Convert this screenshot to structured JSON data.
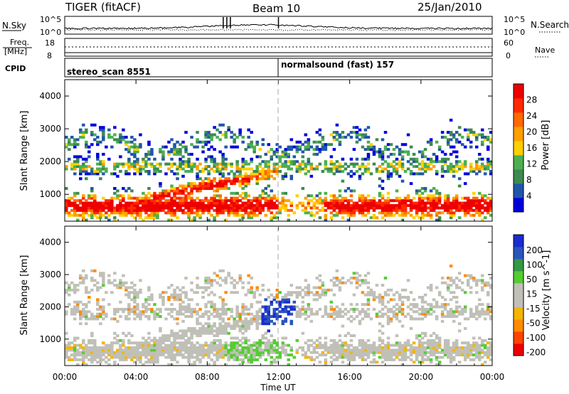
{
  "header": {
    "title": "TIGER (fitACF)",
    "beam": "Beam 10",
    "date": "25/Jan/2010"
  },
  "summary_panel": {
    "nsky_label": "N.Sky",
    "nsearch_label": "N.Search",
    "nsky_ticks": [
      "10^5",
      "10^0"
    ],
    "nsearch_ticks": [
      "10^5",
      "10^0"
    ],
    "freq_label_line1": "Freq.",
    "freq_label_line2": "[MHz]",
    "freq_ticks": [
      "18",
      "8"
    ],
    "nave_label": "Nave",
    "nave_ticks": [
      "60",
      "0"
    ],
    "cpid_label": "CPID",
    "cpid_segments": [
      {
        "label": "stereo_scan 8551",
        "start_hour": 0,
        "end_hour": 12
      },
      {
        "label": "normalsound (fast) 157",
        "start_hour": 12,
        "end_hour": 24
      }
    ]
  },
  "colors": {
    "power_scale": [
      "#0000dd",
      "#2255aa",
      "#3d8a50",
      "#4caf50",
      "#ffd000",
      "#ffa000",
      "#ff6a00",
      "#ff2a00",
      "#ee0000"
    ],
    "velocity_scale": [
      "#ee0000",
      "#ff4400",
      "#ff8c00",
      "#f5b400",
      "#c0c0b8",
      "#c0c0b8",
      "#55cc33",
      "#339944",
      "#2a55bb",
      "#1b2bd0"
    ]
  },
  "chart_data": [
    {
      "type": "heatmap",
      "name": "power",
      "xlabel": "Time UT",
      "ylabel": "Slant Range [km]",
      "xlim": [
        0,
        24
      ],
      "ylim": [
        180,
        4500
      ],
      "x_ticks": [
        "00:00",
        "04:00",
        "08:00",
        "12:00",
        "16:00",
        "20:00",
        "00:00"
      ],
      "y_ticks": [
        1000,
        2000,
        3000,
        4000
      ],
      "colorbar": {
        "label": "Power [dB]",
        "range": [
          0,
          32
        ],
        "ticks": [
          4,
          8,
          12,
          16,
          20,
          24,
          28
        ]
      }
    },
    {
      "type": "heatmap",
      "name": "velocity",
      "xlabel": "Time UT",
      "ylabel": "Slant Range [km]",
      "xlim": [
        0,
        24
      ],
      "ylim": [
        180,
        4500
      ],
      "x_ticks": [
        "00:00",
        "04:00",
        "08:00",
        "12:00",
        "16:00",
        "20:00",
        "00:00"
      ],
      "y_ticks": [
        1000,
        2000,
        3000,
        4000
      ],
      "colorbar": {
        "label": "Velocity [m s^-1]",
        "ticks": [
          200,
          100,
          50,
          15,
          -15,
          -50,
          -100,
          -200
        ]
      }
    }
  ]
}
